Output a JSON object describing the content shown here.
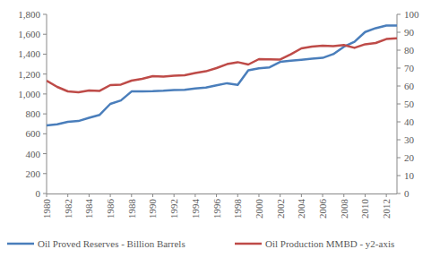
{
  "chart_data": {
    "type": "line",
    "x": [
      1980,
      1981,
      1982,
      1983,
      1984,
      1985,
      1986,
      1987,
      1988,
      1989,
      1990,
      1991,
      1992,
      1993,
      1994,
      1995,
      1996,
      1997,
      1998,
      1999,
      2000,
      2001,
      2002,
      2003,
      2004,
      2005,
      2006,
      2007,
      2008,
      2009,
      2010,
      2011,
      2012,
      2013
    ],
    "xlim": [
      1980,
      2013
    ],
    "xticks": [
      1980,
      1982,
      1984,
      1986,
      1988,
      1990,
      1992,
      1994,
      1996,
      1998,
      2000,
      2002,
      2004,
      2006,
      2008,
      2010,
      2012
    ],
    "ylim": [
      0,
      1800
    ],
    "yticks": [
      0,
      200,
      400,
      600,
      800,
      {
        "value": 1000,
        "label": "1,000"
      },
      {
        "value": 1200,
        "label": "1,200"
      },
      {
        "value": 1400,
        "label": "1,400"
      },
      {
        "value": 1600,
        "label": "1,600"
      },
      {
        "value": 1800,
        "label": "1,800"
      }
    ],
    "y2lim": [
      0,
      100
    ],
    "y2ticks": [
      0,
      10,
      20,
      30,
      40,
      50,
      60,
      70,
      80,
      90,
      100
    ],
    "grid": false,
    "legend": "bottom",
    "series": [
      {
        "name": "Oil Proved Reserves - Billion Barrels",
        "color": "#4a7ebb",
        "values": [
          683,
          695,
          720,
          728,
          760,
          790,
          900,
          935,
          1025,
          1027,
          1028,
          1032,
          1039,
          1041,
          1055,
          1065,
          1086,
          1108,
          1092,
          1238,
          1258,
          1267,
          1322,
          1334,
          1343,
          1354,
          1363,
          1400,
          1474,
          1524,
          1622,
          1661,
          1688,
          1688
        ]
      },
      {
        "name": "Oil Production MMBD - y2-axis",
        "color": "#be4b48",
        "axis": "y2",
        "values": [
          63,
          59.5,
          57,
          56.5,
          57.5,
          57.3,
          60.5,
          60.8,
          63,
          64,
          65.5,
          65.3,
          65.8,
          66,
          67.2,
          68.2,
          70,
          72.2,
          73.3,
          72,
          75,
          74.9,
          74.8,
          77.7,
          81,
          82,
          82.5,
          82.3,
          82.9,
          81.3,
          83.3,
          84,
          86.2,
          86.6
        ]
      }
    ]
  }
}
